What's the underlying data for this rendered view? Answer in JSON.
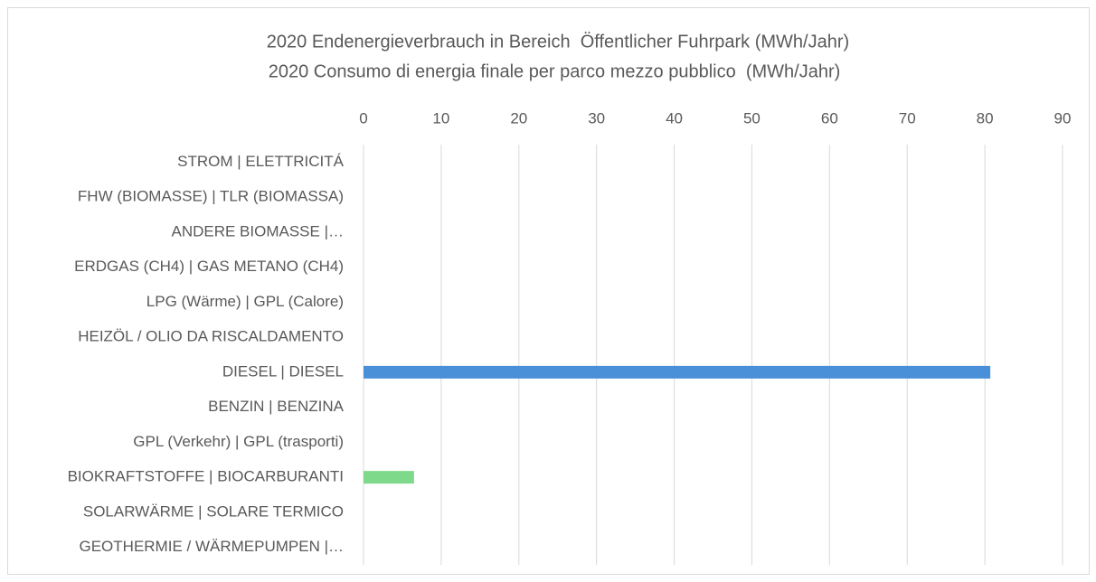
{
  "chart_data": {
    "type": "hbar",
    "title": "2020 Endenergieverbrauch in Bereich  Öffentlicher Fuhrpark (MWh/Jahr)",
    "subtitle": "2020 Consumo di energia finale per parco mezzo pubblico  (MWh/Jahr)",
    "categories": [
      "STROM | ELETTRICITÁ",
      "FHW (BIOMASSE) | TLR (BIOMASSA)",
      "ANDERE BIOMASSE |…",
      "ERDGAS (CH4) | GAS METANO (CH4)",
      "LPG (Wärme) | GPL (Calore)",
      "HEIZÖL / OLIO DA RISCALDAMENTO",
      "DIESEL | DIESEL",
      "BENZIN | BENZINA",
      "GPL (Verkehr) | GPL (trasporti)",
      "BIOKRAFTSTOFFE | BIOCARBURANTI",
      "SOLARWÄRME | SOLARE TERMICO",
      "GEOTHERMIE / WÄRMEPUMPEN |…"
    ],
    "values": [
      0,
      0,
      0,
      0,
      0,
      0,
      80.7,
      0,
      0,
      6.5,
      0,
      0
    ],
    "colors": [
      "#4a90d9",
      "#4a90d9",
      "#4a90d9",
      "#4a90d9",
      "#4a90d9",
      "#4a90d9",
      "#4a90d9",
      "#4a90d9",
      "#4a90d9",
      "#7ed98a",
      "#4a90d9",
      "#4a90d9"
    ],
    "xlim": [
      0,
      90
    ],
    "xticks": [
      0,
      10,
      20,
      30,
      40,
      50,
      60,
      70,
      80,
      90
    ],
    "grid": true
  }
}
